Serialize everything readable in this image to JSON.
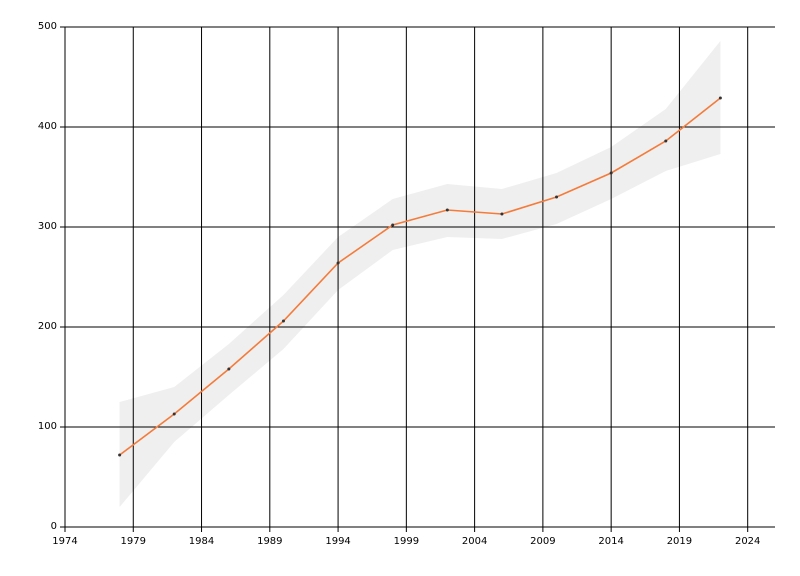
{
  "chart_data": {
    "type": "line",
    "x": [
      1978,
      1982,
      1986,
      1990,
      1994,
      1998,
      2002,
      2006,
      2010,
      2014,
      2018,
      2022
    ],
    "series": [
      {
        "color": "#f47b3a",
        "values": [
          72,
          113,
          158,
          206,
          264,
          302,
          317,
          313,
          330,
          354,
          386,
          429
        ]
      }
    ],
    "band": {
      "color": "#efefef",
      "lower": [
        20,
        85,
        132,
        178,
        237,
        277,
        290,
        288,
        303,
        328,
        356,
        373
      ],
      "upper": [
        125,
        140,
        183,
        232,
        290,
        328,
        343,
        338,
        354,
        380,
        418,
        486
      ]
    },
    "xlim": [
      1974,
      2026
    ],
    "xticks": [
      1974,
      1979,
      1984,
      1989,
      1994,
      1999,
      2004,
      2009,
      2014,
      2019,
      2024
    ],
    "ylim": [
      0,
      500
    ],
    "yticks": [
      0,
      100,
      200,
      300,
      400,
      500
    ],
    "grid": true
  }
}
